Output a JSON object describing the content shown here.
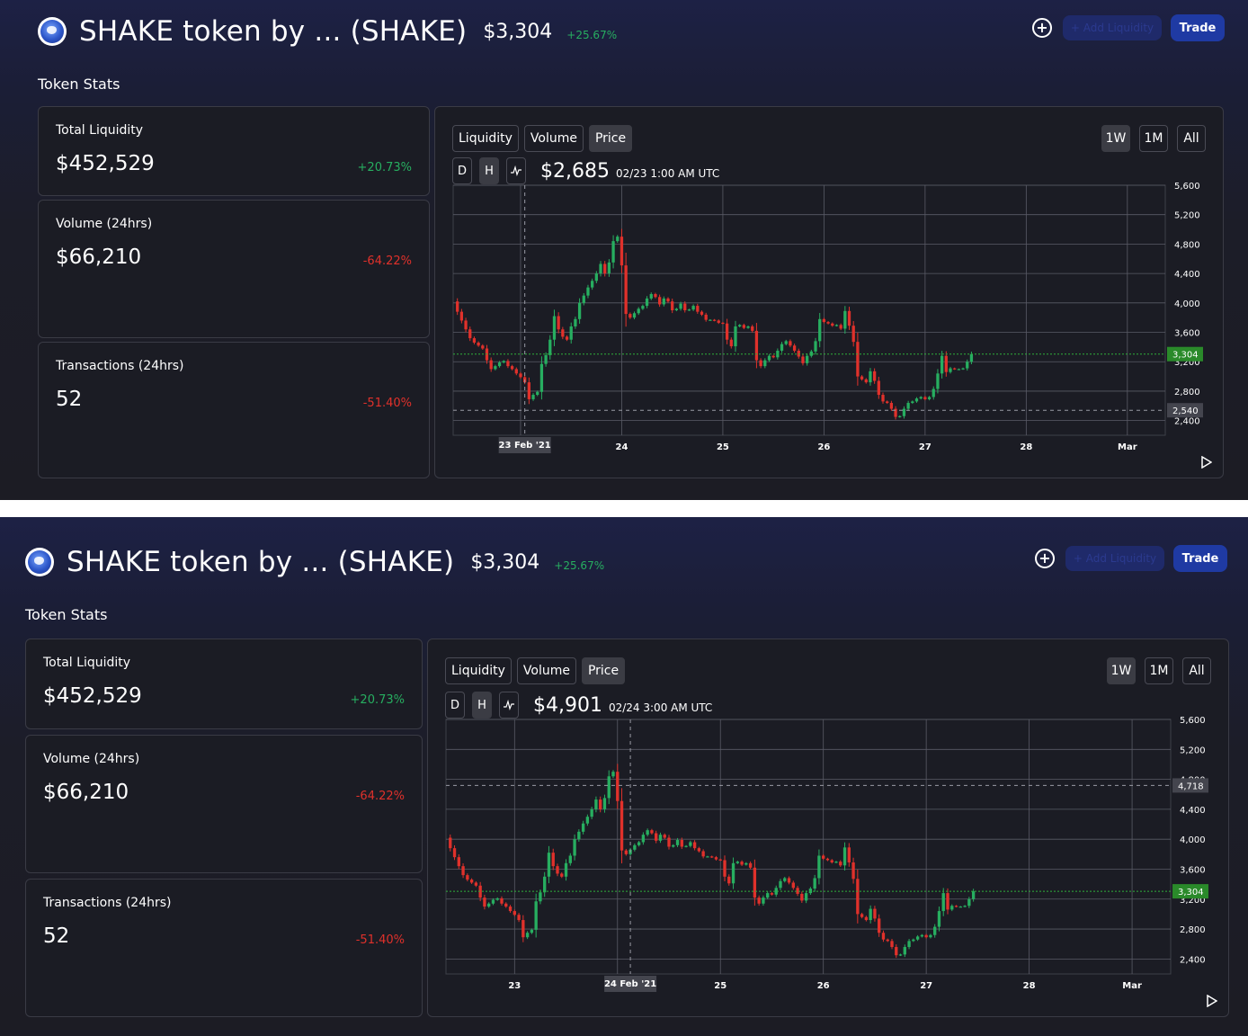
{
  "token": {
    "name": "SHAKE token by ... (SHAKE)",
    "price": "$3,304",
    "change": "+25.67%",
    "logo_icon": "shake-logo"
  },
  "actions": {
    "add_liquidity": "+ Add Liquidity",
    "trade": "Trade",
    "add_icon": "plus-circle-icon"
  },
  "stats_heading": "Token Stats",
  "stats": [
    {
      "label": "Total Liquidity",
      "value": "$452,529",
      "change": "+20.73%"
    },
    {
      "label": "Volume (24hrs)",
      "value": "$66,210",
      "change": "-64.22%"
    },
    {
      "label": "Transactions (24hrs)",
      "value": "52",
      "change": "-51.40%"
    }
  ],
  "chart_tabs": [
    "Liquidity",
    "Volume",
    "Price"
  ],
  "active_tab": "Price",
  "ranges": [
    "1W",
    "1M",
    "All"
  ],
  "active_range": "1W",
  "interval_buttons": [
    "D",
    "H"
  ],
  "active_interval": "H",
  "line_icon": "line-chart-icon",
  "play_icon": "play-icon",
  "colors": {
    "up": "#27ae60",
    "down": "#e0312b",
    "current_price_label": "#2a8a2a"
  },
  "snapshots": [
    {
      "hover_price": "$2,685",
      "hover_time": "02/23 1:00 AM UTC",
      "crosshair_date": "23 Feb '21",
      "crosshair_price_label": "2,540",
      "crosshair_price": 2540,
      "crosshair_hour": 25
    },
    {
      "hover_price": "$4,901",
      "hover_time": "02/24 3:00 AM UTC",
      "crosshair_date": "24 Feb '21",
      "crosshair_price_label": "4,718",
      "crosshair_price": 4718,
      "crosshair_hour": 51
    }
  ],
  "chart_data": {
    "type": "candlestick",
    "current_price": 3304,
    "current_price_label": "3,304",
    "ylim": [
      2200,
      5600
    ],
    "y_ticks": [
      2400,
      2800,
      3200,
      3600,
      4000,
      4400,
      4800,
      5200,
      5600
    ],
    "y_tick_labels": [
      "2,400",
      "2,800",
      "3,200",
      "3,600",
      "4,000",
      "4,400",
      "4,800",
      "5,200",
      "5,600"
    ],
    "x_ticks": [
      {
        "hour": 24,
        "label": "23"
      },
      {
        "hour": 48,
        "label": "24"
      },
      {
        "hour": 72,
        "label": "25"
      },
      {
        "hour": 96,
        "label": "26"
      },
      {
        "hour": 120,
        "label": "27"
      },
      {
        "hour": 144,
        "label": "28"
      },
      {
        "hour": 168,
        "label": "Mar"
      }
    ],
    "x_range_hours": [
      8,
      177
    ],
    "closes": [
      3880,
      3760,
      3640,
      3520,
      3460,
      3420,
      3380,
      3220,
      3100,
      3140,
      3190,
      3210,
      3140,
      3100,
      3040,
      2990,
      2920,
      2690,
      2750,
      2790,
      3170,
      3290,
      3500,
      3820,
      3640,
      3540,
      3500,
      3680,
      3780,
      4000,
      4100,
      4210,
      4300,
      4400,
      4530,
      4400,
      4550,
      4840,
      4901,
      4510,
      3850,
      3800,
      3860,
      3920,
      3960,
      4060,
      4120,
      4080,
      3980,
      4060,
      4020,
      3900,
      3920,
      3990,
      3900,
      3910,
      3960,
      3880,
      3840,
      3770,
      3770,
      3760,
      3730,
      3720,
      3500,
      3410,
      3680,
      3700,
      3660,
      3680,
      3620,
      3220,
      3140,
      3220,
      3280,
      3260,
      3350,
      3440,
      3480,
      3420,
      3350,
      3270,
      3180,
      3280,
      3340,
      3480,
      3780,
      3740,
      3720,
      3690,
      3700,
      3650,
      3890,
      3690,
      3470,
      3000,
      2960,
      2920,
      3070,
      2940,
      2750,
      2660,
      2640,
      2560,
      2450,
      2460,
      2560,
      2640,
      2660,
      2700,
      2720,
      2690,
      2720,
      2830,
      3040,
      3280,
      3060,
      3110,
      3100,
      3100,
      3110,
      3200,
      3304
    ],
    "closes_start_hour": 9,
    "open_first": 4020
  }
}
